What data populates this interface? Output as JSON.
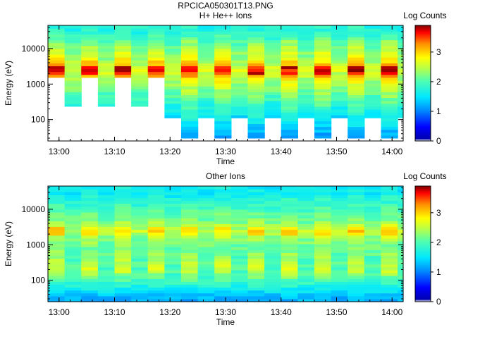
{
  "figure": {
    "title": "RPCICA050301T13.PNG"
  },
  "colorbar": {
    "label": "Log Counts",
    "ticks": [
      "0",
      "1",
      "2",
      "3"
    ],
    "range": [
      0,
      3.9
    ]
  },
  "chart_data": [
    {
      "type": "heatmap",
      "title": "H+ He++ Ions",
      "xlabel": "Time",
      "ylabel": "Energy (eV)",
      "y_scale": "log",
      "ylim": [
        25,
        45000
      ],
      "xlim": [
        "12:58",
        "14:02"
      ],
      "x_ticks": [
        "13:00",
        "13:10",
        "13:20",
        "13:30",
        "13:40",
        "13:50",
        "14:00"
      ],
      "y_ticks": [
        "100",
        "1000",
        "10000"
      ],
      "colorbar_label": "Log Counts",
      "time_bins": [
        {
          "t0": "12:58.0",
          "t1": "13:01.0",
          "pattern": "bright",
          "low_cutoff_eV": 1600
        },
        {
          "t0": "13:01.0",
          "t1": "13:04.0",
          "pattern": "dim",
          "low_cutoff_eV": 250
        },
        {
          "t0": "13:04.0",
          "t1": "13:07.0",
          "pattern": "bright",
          "low_cutoff_eV": 1600
        },
        {
          "t0": "13:07.0",
          "t1": "13:10.0",
          "pattern": "dim",
          "low_cutoff_eV": 250
        },
        {
          "t0": "13:10.0",
          "t1": "13:13.0",
          "pattern": "bright",
          "low_cutoff_eV": 1600
        },
        {
          "t0": "13:13.0",
          "t1": "13:16.0",
          "pattern": "dim",
          "low_cutoff_eV": 250
        },
        {
          "t0": "13:16.0",
          "t1": "13:19.0",
          "pattern": "bright",
          "low_cutoff_eV": 1600
        },
        {
          "t0": "13:19.0",
          "t1": "13:22.0",
          "pattern": "dim",
          "low_cutoff_eV": 105
        },
        {
          "t0": "13:22.0",
          "t1": "13:25.0",
          "pattern": "bright",
          "low_cutoff_eV": 28
        },
        {
          "t0": "13:25.0",
          "t1": "13:28.0",
          "pattern": "dim",
          "low_cutoff_eV": 105
        },
        {
          "t0": "13:28.0",
          "t1": "13:31.0",
          "pattern": "bright",
          "low_cutoff_eV": 28
        },
        {
          "t0": "13:31.0",
          "t1": "13:34.0",
          "pattern": "dim",
          "low_cutoff_eV": 105
        },
        {
          "t0": "13:34.0",
          "t1": "13:37.0",
          "pattern": "bright",
          "low_cutoff_eV": 28
        },
        {
          "t0": "13:37.0",
          "t1": "13:40.0",
          "pattern": "dim",
          "low_cutoff_eV": 105
        },
        {
          "t0": "13:40.0",
          "t1": "13:43.0",
          "pattern": "bright",
          "low_cutoff_eV": 28
        },
        {
          "t0": "13:43.0",
          "t1": "13:46.0",
          "pattern": "dim",
          "low_cutoff_eV": 105
        },
        {
          "t0": "13:46.0",
          "t1": "13:49.0",
          "pattern": "bright",
          "low_cutoff_eV": 28
        },
        {
          "t0": "13:49.0",
          "t1": "13:52.0",
          "pattern": "dim",
          "low_cutoff_eV": 105
        },
        {
          "t0": "13:52.0",
          "t1": "13:55.0",
          "pattern": "bright",
          "low_cutoff_eV": 28
        },
        {
          "t0": "13:55.0",
          "t1": "13:58.0",
          "pattern": "dim",
          "low_cutoff_eV": 105
        },
        {
          "t0": "13:58.0",
          "t1": "14:01.0",
          "pattern": "bright",
          "low_cutoff_eV": 28
        },
        {
          "t0": "14:01.0",
          "t1": "14:02.0",
          "pattern": "dim",
          "low_cutoff_eV": 105
        }
      ],
      "energy_profile_logcounts": {
        "energy_eV": [
          30,
          50,
          100,
          200,
          400,
          800,
          1500,
          2500,
          4000,
          8000,
          15000,
          30000
        ],
        "bright_bin": [
          1.1,
          1.3,
          1.6,
          1.9,
          2.2,
          2.5,
          3.0,
          3.6,
          3.0,
          2.6,
          2.3,
          1.8
        ],
        "dim_bin": [
          0.9,
          1.1,
          1.4,
          1.6,
          1.9,
          2.2,
          2.4,
          2.6,
          2.4,
          2.2,
          2.0,
          1.7
        ]
      },
      "peak_band_eV": [
        2000,
        3000
      ],
      "peak_logcounts": 3.9
    },
    {
      "type": "heatmap",
      "title": "Other Ions",
      "xlabel": "Time",
      "ylabel": "Energy (eV)",
      "y_scale": "log",
      "ylim": [
        25,
        45000
      ],
      "xlim": [
        "12:58",
        "14:02"
      ],
      "x_ticks": [
        "13:00",
        "13:10",
        "13:20",
        "13:30",
        "13:40",
        "13:50",
        "14:00"
      ],
      "y_ticks": [
        "100",
        "1000",
        "10000"
      ],
      "colorbar_label": "Log Counts",
      "energy_profile_logcounts": {
        "energy_eV": [
          30,
          50,
          100,
          200,
          400,
          800,
          1500,
          2500,
          4000,
          8000,
          15000,
          30000
        ],
        "bright_bin": [
          1.2,
          1.5,
          2.0,
          2.6,
          2.4,
          2.2,
          2.4,
          3.0,
          2.4,
          2.1,
          1.9,
          1.6
        ],
        "dim_bin": [
          1.2,
          1.5,
          1.9,
          2.0,
          2.0,
          2.1,
          2.2,
          2.5,
          2.2,
          2.0,
          1.8,
          1.5
        ]
      },
      "peak_band_eV": [
        2000,
        3000
      ],
      "peak_logcounts": 3.1
    }
  ]
}
